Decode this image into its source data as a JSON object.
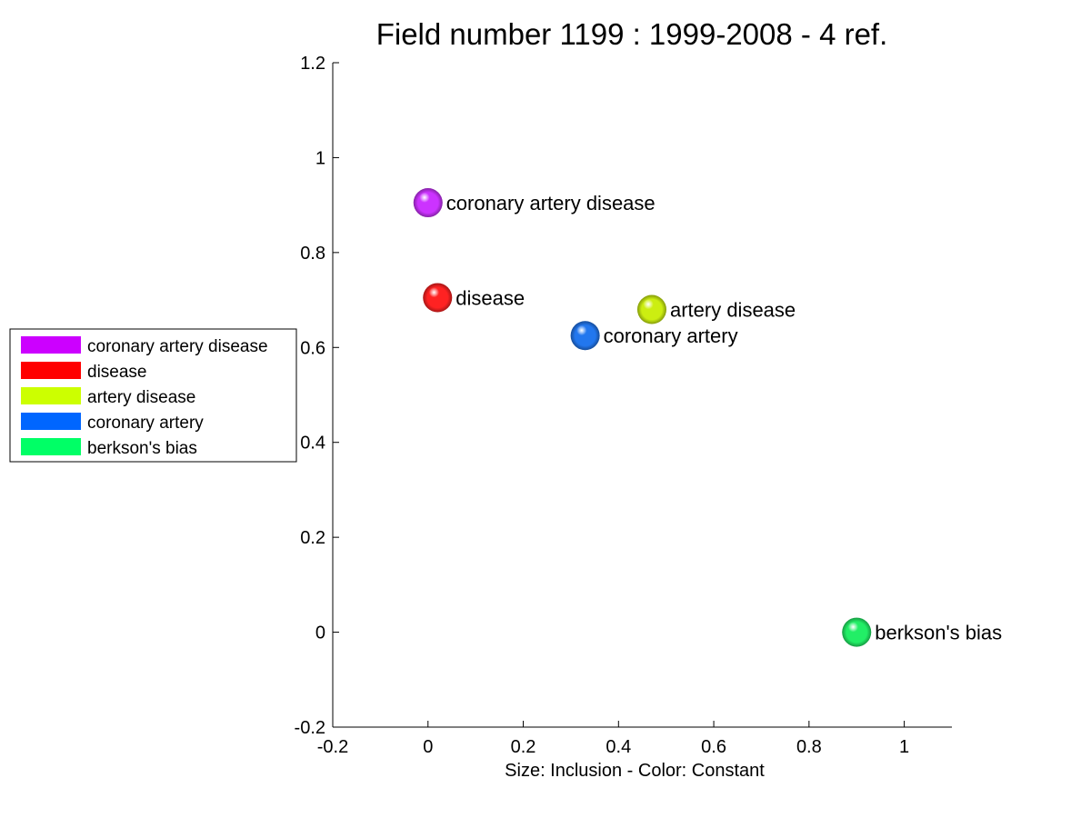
{
  "chart_data": {
    "type": "scatter",
    "title": "Field number 1199 : 1999-2008  - 4 ref.",
    "xlabel": "Size: Inclusion - Color: Constant",
    "ylabel": "",
    "xlim": [
      -0.2,
      1.1
    ],
    "ylim": [
      -0.2,
      1.2
    ],
    "xticks": [
      -0.2,
      0,
      0.2,
      0.4,
      0.6,
      0.8,
      1
    ],
    "xtick_labels": [
      "-0.2",
      "0",
      "0.2",
      "0.4",
      "0.6",
      "0.8",
      "1"
    ],
    "yticks": [
      -0.2,
      0,
      0.2,
      0.4,
      0.6,
      0.8,
      1,
      1.2
    ],
    "ytick_labels": [
      "-0.2",
      "0",
      "0.2",
      "0.4",
      "0.6",
      "0.8",
      "1",
      "1.2"
    ],
    "grid": false,
    "legend_position": "left",
    "points": [
      {
        "label": "coronary artery disease",
        "x": 0.0,
        "y": 0.905,
        "color": "#cc33ff"
      },
      {
        "label": "disease",
        "x": 0.02,
        "y": 0.705,
        "color": "#ff2222"
      },
      {
        "label": "artery disease",
        "x": 0.47,
        "y": 0.68,
        "color": "#ccee11"
      },
      {
        "label": "coronary artery",
        "x": 0.33,
        "y": 0.625,
        "color": "#2277ee"
      },
      {
        "label": "berkson's bias",
        "x": 0.9,
        "y": 0.0,
        "color": "#22ee66"
      }
    ],
    "legend": [
      {
        "label": "coronary artery disease",
        "color": "#cc00ff"
      },
      {
        "label": "disease",
        "color": "#ff0000"
      },
      {
        "label": "artery disease",
        "color": "#ccff00"
      },
      {
        "label": "coronary artery",
        "color": "#0066ff"
      },
      {
        "label": "berkson's bias",
        "color": "#00ff66"
      }
    ]
  }
}
